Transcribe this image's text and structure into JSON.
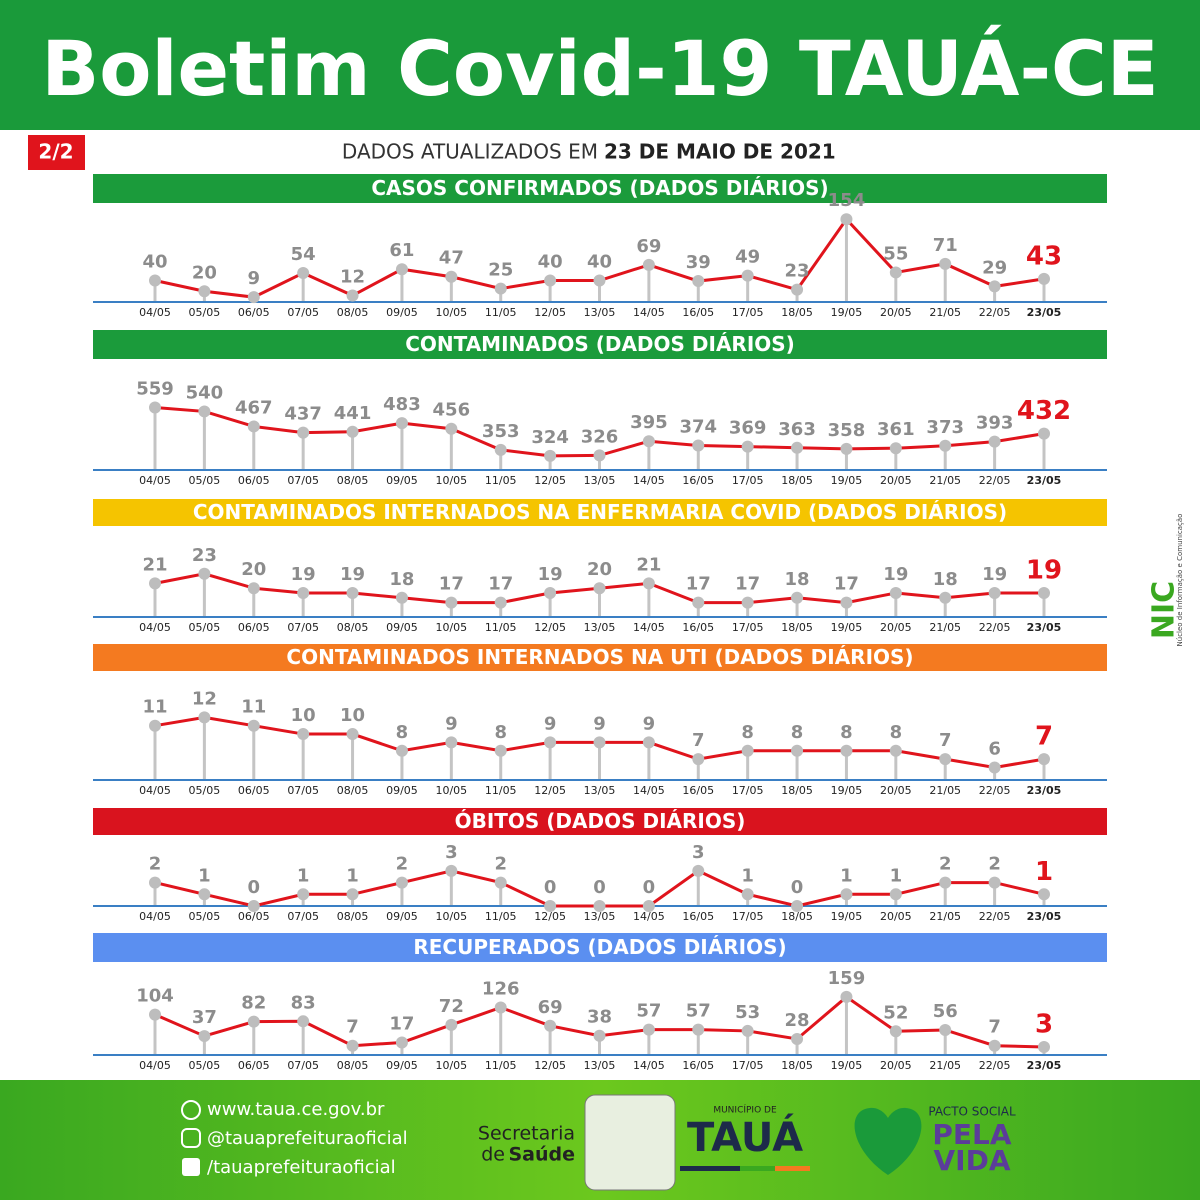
{
  "header": {
    "title": "Boletim Covid-19 TAUÁ-CE",
    "badge": "2/2",
    "updated_prefix": "DADOS ATUALIZADOS EM",
    "updated_date": "23 DE MAIO DE 2021"
  },
  "side_logo": {
    "name": "NIC",
    "caption": "Núcleo de Informação e Comunicação"
  },
  "footer": {
    "site": "www.taua.ce.gov.br",
    "instagram": "@tauaprefeituraoficial",
    "facebook": "/tauaprefeituraoficial",
    "secretaria": "Secretaria",
    "saude_prefix": "de",
    "saude": "Saúde",
    "municipio": "MUNICÍPIO DE",
    "taua": "TAUÁ",
    "pacto": "PACTO SOCIAL",
    "pela": "PELA",
    "vida": "VIDA"
  },
  "chart_data": [
    {
      "type": "line",
      "title": "CASOS CONFIRMADOS  (DADOS DIÁRIOS)",
      "band_color": "#1b9b3b",
      "color": "#e0141c",
      "highlight_color": "#e0141c",
      "categories": [
        "04/05",
        "05/05",
        "06/05",
        "07/05",
        "08/05",
        "09/05",
        "10/05",
        "11/05",
        "12/05",
        "13/05",
        "14/05",
        "16/05",
        "17/05",
        "18/05",
        "19/05",
        "20/05",
        "21/05",
        "22/05",
        "23/05"
      ],
      "values": [
        40,
        20,
        9,
        54,
        12,
        61,
        47,
        25,
        40,
        40,
        69,
        39,
        49,
        23,
        154,
        55,
        71,
        29,
        43
      ],
      "ylim": [
        0,
        160
      ]
    },
    {
      "type": "line",
      "title": "CONTAMINADOS  (DADOS DIÁRIOS)",
      "band_color": "#1b9b3b",
      "color": "#e0141c",
      "highlight_color": "#e0141c",
      "categories": [
        "04/05",
        "05/05",
        "06/05",
        "07/05",
        "08/05",
        "09/05",
        "10/05",
        "11/05",
        "12/05",
        "13/05",
        "14/05",
        "16/05",
        "17/05",
        "18/05",
        "19/05",
        "20/05",
        "21/05",
        "22/05",
        "23/05"
      ],
      "values": [
        559,
        540,
        467,
        437,
        441,
        483,
        456,
        353,
        324,
        326,
        395,
        374,
        369,
        363,
        358,
        361,
        373,
        393,
        432
      ],
      "ylim": [
        255,
        620
      ]
    },
    {
      "type": "line",
      "title": "CONTAMINADOS INTERNADOS NA ENFERMARIA COVID  (DADOS DIÁRIOS)",
      "band_color": "#f5c400",
      "color": "#e0141c",
      "highlight_color": "#e0141c",
      "categories": [
        "04/05",
        "05/05",
        "06/05",
        "07/05",
        "08/05",
        "09/05",
        "10/05",
        "11/05",
        "12/05",
        "13/05",
        "14/05",
        "16/05",
        "17/05",
        "18/05",
        "19/05",
        "20/05",
        "21/05",
        "22/05",
        "23/05"
      ],
      "values": [
        21,
        23,
        20,
        19,
        19,
        18,
        17,
        17,
        19,
        20,
        21,
        17,
        17,
        18,
        17,
        19,
        18,
        19,
        19
      ],
      "ylim": [
        14,
        24
      ]
    },
    {
      "type": "line",
      "title": "CONTAMINADOS INTERNADOS NA UTI  (DADOS DIÁRIOS)",
      "band_color": "#f47a20",
      "color": "#e0141c",
      "highlight_color": "#e0141c",
      "categories": [
        "04/05",
        "05/05",
        "06/05",
        "07/05",
        "08/05",
        "09/05",
        "10/05",
        "11/05",
        "12/05",
        "13/05",
        "14/05",
        "16/05",
        "17/05",
        "18/05",
        "19/05",
        "20/05",
        "21/05",
        "22/05",
        "23/05"
      ],
      "values": [
        11,
        12,
        11,
        10,
        10,
        8,
        9,
        8,
        9,
        9,
        9,
        7,
        8,
        8,
        8,
        8,
        7,
        6,
        7
      ],
      "ylim": [
        4.5,
        13
      ]
    },
    {
      "type": "line",
      "title": "ÓBITOS  (DADOS DIÁRIOS)",
      "band_color": "#d9131e",
      "color": "#e0141c",
      "highlight_color": "#e0141c",
      "categories": [
        "04/05",
        "05/05",
        "06/05",
        "07/05",
        "08/05",
        "09/05",
        "10/05",
        "11/05",
        "12/05",
        "13/05",
        "14/05",
        "16/05",
        "17/05",
        "18/05",
        "19/05",
        "20/05",
        "21/05",
        "22/05",
        "23/05"
      ],
      "values": [
        2,
        1,
        0,
        1,
        1,
        2,
        3,
        2,
        0,
        0,
        0,
        3,
        1,
        0,
        1,
        1,
        2,
        2,
        1
      ],
      "ylim": [
        0,
        3.5
      ]
    },
    {
      "type": "line",
      "title": "RECUPERADOS (DADOS DIÁRIOS)",
      "band_color": "#5b8ff0",
      "color": "#e0141c",
      "highlight_color": "#e0141c",
      "categories": [
        "04/05",
        "05/05",
        "06/05",
        "07/05",
        "08/05",
        "09/05",
        "10/05",
        "11/05",
        "12/05",
        "13/05",
        "14/05",
        "16/05",
        "17/05",
        "18/05",
        "19/05",
        "20/05",
        "21/05",
        "22/05",
        "23/05"
      ],
      "values": [
        104,
        37,
        82,
        83,
        7,
        17,
        72,
        126,
        69,
        38,
        57,
        57,
        53,
        28,
        159,
        52,
        56,
        7,
        3
      ],
      "ylim": [
        -22,
        165
      ]
    }
  ]
}
